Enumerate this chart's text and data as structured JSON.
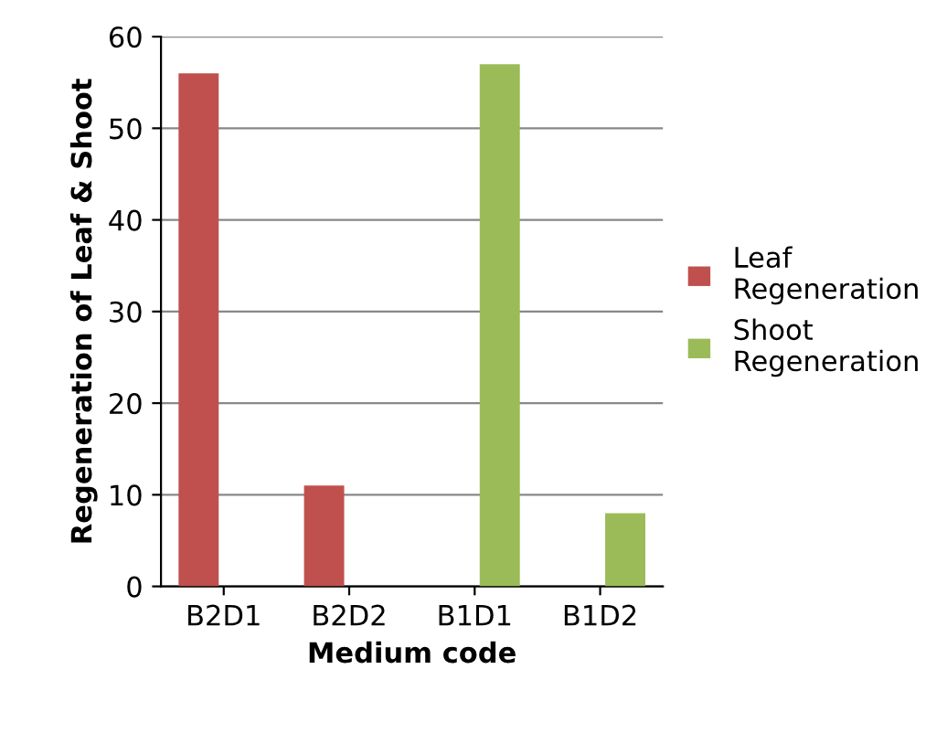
{
  "chart_data": {
    "type": "bar",
    "xlabel": "Medium code",
    "ylabel": "Regeneration of Leaf & Shoot",
    "categories": [
      "B2D1",
      "B2D2",
      "B1D1",
      "B1D2"
    ],
    "series": [
      {
        "name": "Leaf Regeneration",
        "color": "#c0504d",
        "values": [
          56,
          11,
          0,
          0
        ]
      },
      {
        "name": "Shoot Regeneration",
        "color": "#9bbb59",
        "values": [
          0,
          0,
          57,
          8
        ]
      }
    ],
    "ylim": [
      0,
      60
    ],
    "yticks": [
      0,
      10,
      20,
      30,
      40,
      50,
      60
    ],
    "grid": "y",
    "legend": "right"
  }
}
